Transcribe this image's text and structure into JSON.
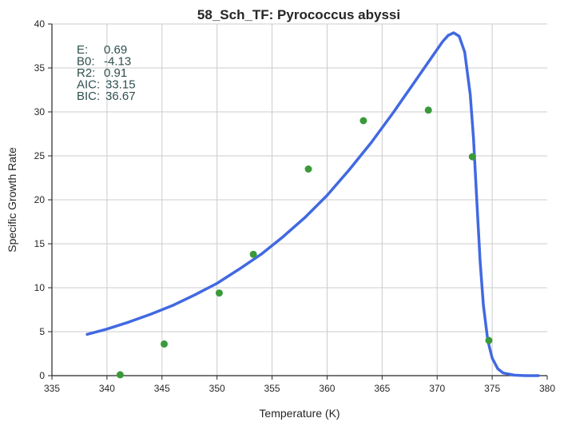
{
  "chart_data": {
    "type": "scatter",
    "title": "58_Sch_TF: Pyrococcus abyssi",
    "xlabel": "Temperature (K)",
    "ylabel": "Specific Growth Rate",
    "xlim": [
      335,
      380
    ],
    "ylim": [
      0,
      40
    ],
    "xticks": [
      "335",
      "340",
      "345",
      "350",
      "355",
      "360",
      "365",
      "370",
      "375",
      "380"
    ],
    "yticks": [
      "0",
      "5",
      "10",
      "15",
      "20",
      "25",
      "30",
      "35",
      "40"
    ],
    "grid": true,
    "points": [
      {
        "x": 341.2,
        "y": 0.1
      },
      {
        "x": 345.2,
        "y": 3.6
      },
      {
        "x": 350.2,
        "y": 9.4
      },
      {
        "x": 353.3,
        "y": 13.8
      },
      {
        "x": 358.3,
        "y": 23.5
      },
      {
        "x": 363.3,
        "y": 29.0
      },
      {
        "x": 369.2,
        "y": 30.2
      },
      {
        "x": 373.2,
        "y": 24.9
      },
      {
        "x": 374.7,
        "y": 4.0
      }
    ],
    "fit_curve": [
      [
        338.2,
        4.7
      ],
      [
        340,
        5.3
      ],
      [
        342,
        6.1
      ],
      [
        344,
        7.0
      ],
      [
        346,
        8.0
      ],
      [
        348,
        9.2
      ],
      [
        350,
        10.5
      ],
      [
        352,
        12.1
      ],
      [
        354,
        13.8
      ],
      [
        356,
        15.8
      ],
      [
        358,
        18.0
      ],
      [
        360,
        20.5
      ],
      [
        362,
        23.4
      ],
      [
        364,
        26.5
      ],
      [
        366,
        29.9
      ],
      [
        367,
        31.7
      ],
      [
        368,
        33.5
      ],
      [
        369,
        35.3
      ],
      [
        370,
        37.1
      ],
      [
        370.5,
        38.0
      ],
      [
        371,
        38.7
      ],
      [
        371.5,
        39.0
      ],
      [
        372,
        38.6
      ],
      [
        372.5,
        36.8
      ],
      [
        373,
        32.0
      ],
      [
        373.3,
        27.0
      ],
      [
        373.6,
        20.0
      ],
      [
        373.9,
        13.0
      ],
      [
        374.2,
        8.0
      ],
      [
        374.6,
        4.0
      ],
      [
        375,
        2.0
      ],
      [
        375.5,
        0.8
      ],
      [
        376,
        0.3
      ],
      [
        377,
        0.05
      ],
      [
        378,
        0.0
      ],
      [
        379.2,
        0.0
      ]
    ],
    "curve_color": "#4169e1",
    "point_color": "#3a9a3a",
    "stats": [
      {
        "label": "E:",
        "value": "0.69"
      },
      {
        "label": "B0:",
        "value": "-4.13"
      },
      {
        "label": "R2:",
        "value": "0.91"
      },
      {
        "label": "AIC:",
        "value": "33.15"
      },
      {
        "label": "BIC:",
        "value": "36.67"
      }
    ]
  }
}
